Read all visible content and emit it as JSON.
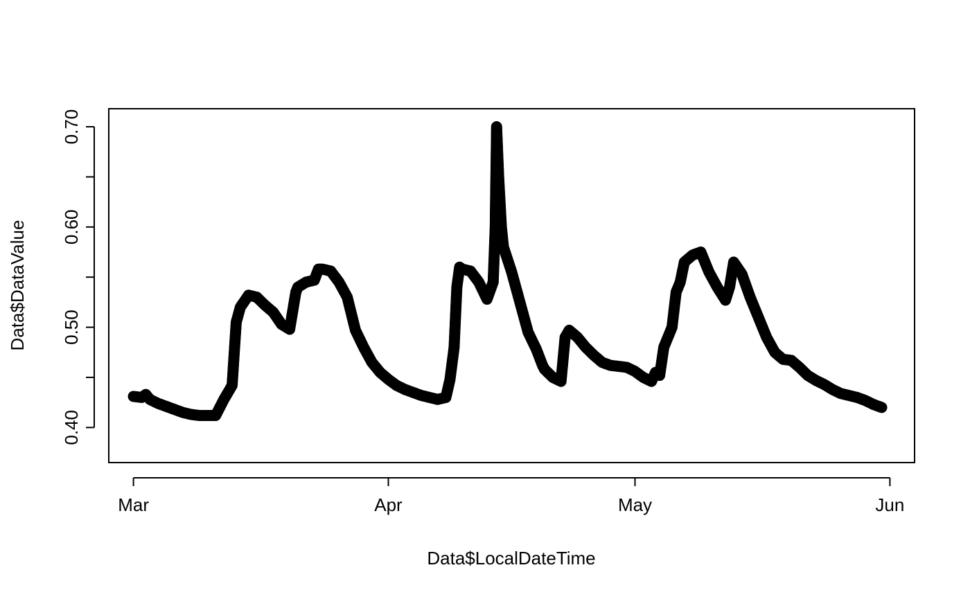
{
  "chart_data": {
    "type": "scatter",
    "title": "",
    "xlabel": "Data$LocalDateTime",
    "ylabel": "Data$DataValue",
    "x_ticks": [
      {
        "label": "Mar",
        "date": "2016-03-01"
      },
      {
        "label": "Apr",
        "date": "2016-04-01"
      },
      {
        "label": "May",
        "date": "2016-05-01"
      },
      {
        "label": "Jun",
        "date": "2016-06-01"
      }
    ],
    "y_ticks": [
      0.4,
      0.45,
      0.5,
      0.55,
      0.6,
      0.65,
      0.7
    ],
    "y_tick_labels": {
      "0.4": "0.40",
      "0.5": "0.50",
      "0.6": "0.60",
      "0.7": "0.70"
    },
    "xlim": [
      "2016-02-27",
      "2016-06-04"
    ],
    "ylim": [
      0.365,
      0.718
    ],
    "grid": false,
    "marker": "open-circle",
    "color": "#000000",
    "series": [
      {
        "points": [
          [
            "2016-03-01",
            0.431
          ],
          [
            "2016-03-02",
            0.43
          ],
          [
            "2016-03-02T12:00",
            0.433
          ],
          [
            "2016-03-03",
            0.428
          ],
          [
            "2016-03-04",
            0.424
          ],
          [
            "2016-03-05",
            0.421
          ],
          [
            "2016-03-06",
            0.418
          ],
          [
            "2016-03-07",
            0.415
          ],
          [
            "2016-03-08",
            0.413
          ],
          [
            "2016-03-09",
            0.412
          ],
          [
            "2016-03-10",
            0.412
          ],
          [
            "2016-03-11",
            0.412
          ],
          [
            "2016-03-12",
            0.428
          ],
          [
            "2016-03-13",
            0.442
          ],
          [
            "2016-03-13T12:00",
            0.505
          ],
          [
            "2016-03-14",
            0.52
          ],
          [
            "2016-03-15",
            0.532
          ],
          [
            "2016-03-16",
            0.53
          ],
          [
            "2016-03-17",
            0.522
          ],
          [
            "2016-03-18",
            0.515
          ],
          [
            "2016-03-19",
            0.503
          ],
          [
            "2016-03-20",
            0.498
          ],
          [
            "2016-03-20T18:00",
            0.535
          ],
          [
            "2016-03-21",
            0.54
          ],
          [
            "2016-03-22",
            0.545
          ],
          [
            "2016-03-23",
            0.547
          ],
          [
            "2016-03-23T12:00",
            0.558
          ],
          [
            "2016-03-24",
            0.558
          ],
          [
            "2016-03-25",
            0.556
          ],
          [
            "2016-03-26",
            0.545
          ],
          [
            "2016-03-27",
            0.53
          ],
          [
            "2016-03-28",
            0.497
          ],
          [
            "2016-03-29",
            0.48
          ],
          [
            "2016-03-30",
            0.465
          ],
          [
            "2016-03-31",
            0.455
          ],
          [
            "2016-04-01",
            0.448
          ],
          [
            "2016-04-02",
            0.442
          ],
          [
            "2016-04-03",
            0.438
          ],
          [
            "2016-04-04",
            0.435
          ],
          [
            "2016-04-05",
            0.432
          ],
          [
            "2016-04-06",
            0.43
          ],
          [
            "2016-04-07",
            0.428
          ],
          [
            "2016-04-08",
            0.43
          ],
          [
            "2016-04-08T12:00",
            0.448
          ],
          [
            "2016-04-09",
            0.48
          ],
          [
            "2016-04-09T08:00",
            0.54
          ],
          [
            "2016-04-09T16:00",
            0.56
          ],
          [
            "2016-04-10",
            0.558
          ],
          [
            "2016-04-11",
            0.556
          ],
          [
            "2016-04-12",
            0.545
          ],
          [
            "2016-04-13",
            0.528
          ],
          [
            "2016-04-13T18:00",
            0.545
          ],
          [
            "2016-04-14",
            0.6
          ],
          [
            "2016-04-14T04:00",
            0.7
          ],
          [
            "2016-04-14T10:00",
            0.65
          ],
          [
            "2016-04-14T18:00",
            0.6
          ],
          [
            "2016-04-15",
            0.58
          ],
          [
            "2016-04-16",
            0.555
          ],
          [
            "2016-04-17",
            0.525
          ],
          [
            "2016-04-18",
            0.495
          ],
          [
            "2016-04-19",
            0.478
          ],
          [
            "2016-04-19T18:00",
            0.462
          ],
          [
            "2016-04-20",
            0.458
          ],
          [
            "2016-04-21",
            0.45
          ],
          [
            "2016-04-22",
            0.446
          ],
          [
            "2016-04-22T12:00",
            0.49
          ],
          [
            "2016-04-23",
            0.497
          ],
          [
            "2016-04-24",
            0.49
          ],
          [
            "2016-04-25",
            0.48
          ],
          [
            "2016-04-26",
            0.472
          ],
          [
            "2016-04-27",
            0.465
          ],
          [
            "2016-04-28",
            0.462
          ],
          [
            "2016-04-29",
            0.461
          ],
          [
            "2016-04-30",
            0.46
          ],
          [
            "2016-05-01",
            0.456
          ],
          [
            "2016-05-02",
            0.45
          ],
          [
            "2016-05-03",
            0.446
          ],
          [
            "2016-05-03T12:00",
            0.455
          ],
          [
            "2016-05-04",
            0.452
          ],
          [
            "2016-05-04T12:00",
            0.48
          ],
          [
            "2016-05-05",
            0.49
          ],
          [
            "2016-05-05T12:00",
            0.5
          ],
          [
            "2016-05-06",
            0.535
          ],
          [
            "2016-05-06T12:00",
            0.545
          ],
          [
            "2016-05-07",
            0.565
          ],
          [
            "2016-05-08",
            0.572
          ],
          [
            "2016-05-09",
            0.575
          ],
          [
            "2016-05-10",
            0.555
          ],
          [
            "2016-05-11",
            0.54
          ],
          [
            "2016-05-12",
            0.527
          ],
          [
            "2016-05-12T12:00",
            0.54
          ],
          [
            "2016-05-13",
            0.565
          ],
          [
            "2016-05-14",
            0.553
          ],
          [
            "2016-05-15",
            0.53
          ],
          [
            "2016-05-16",
            0.51
          ],
          [
            "2016-05-17",
            0.49
          ],
          [
            "2016-05-18",
            0.475
          ],
          [
            "2016-05-19",
            0.468
          ],
          [
            "2016-05-20",
            0.467
          ],
          [
            "2016-05-21",
            0.46
          ],
          [
            "2016-05-22",
            0.452
          ],
          [
            "2016-05-23",
            0.447
          ],
          [
            "2016-05-24",
            0.443
          ],
          [
            "2016-05-25",
            0.438
          ],
          [
            "2016-05-26",
            0.434
          ],
          [
            "2016-05-27",
            0.432
          ],
          [
            "2016-05-28",
            0.43
          ],
          [
            "2016-05-29",
            0.427
          ],
          [
            "2016-05-30",
            0.423
          ],
          [
            "2016-05-31",
            0.42
          ]
        ]
      }
    ]
  }
}
